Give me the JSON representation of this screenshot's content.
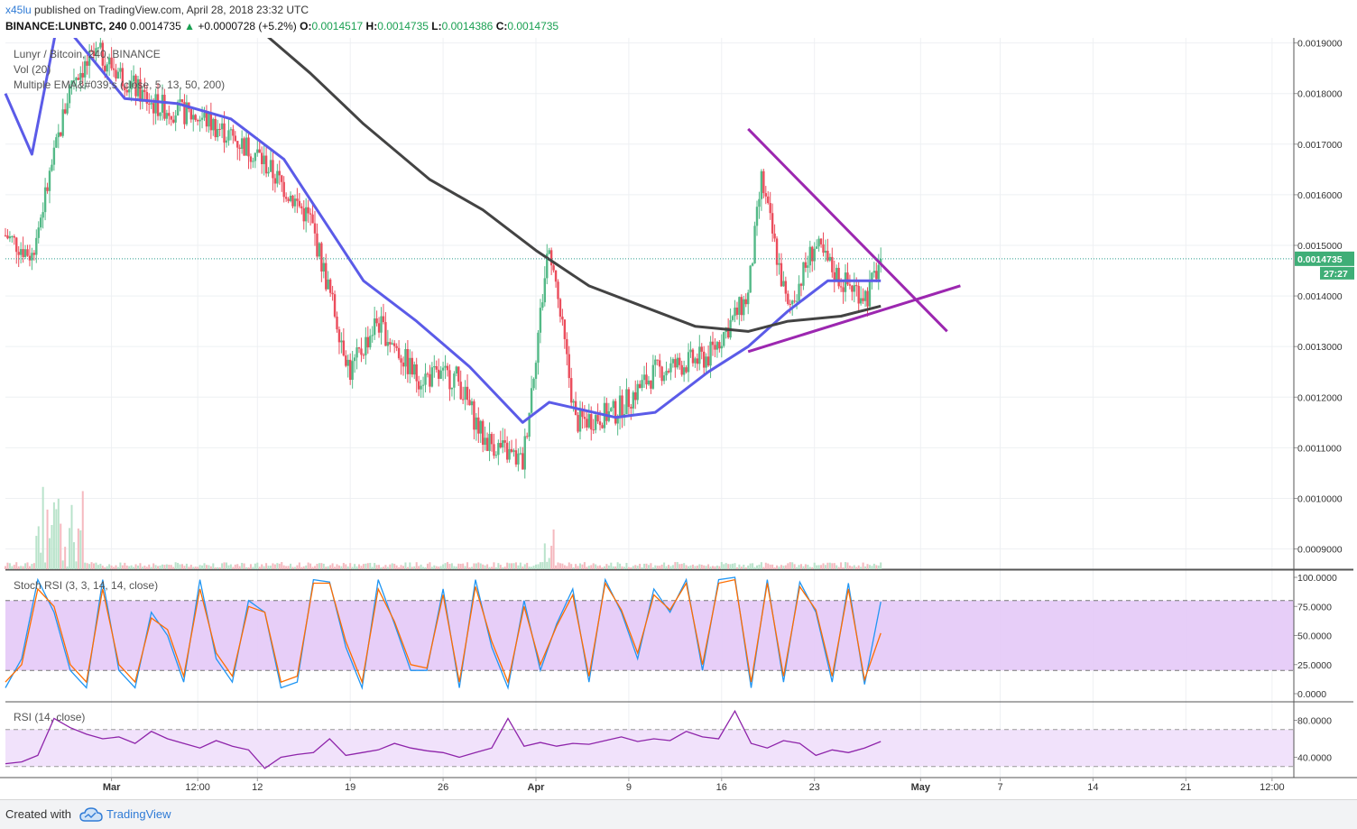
{
  "header": {
    "author": "x45lu",
    "published_text": "published on TradingView.com, April 28, 2018 23:32 UTC",
    "symbol": "BINANCE:LUNBTC, 240",
    "last": "0.0014735",
    "change_arrow": "▲",
    "change": "+0.0000728 (+5.2%)",
    "o_label": "O:",
    "o": "0.0014517",
    "h_label": "H:",
    "h": "0.0014735",
    "l_label": "L:",
    "l": "0.0014386",
    "c_label": "C:",
    "c": "0.0014735"
  },
  "legends": {
    "main": "Lunyr / Bitcoin, 240, BINANCE",
    "vol": "Vol (20)",
    "ema": "Multiple EMA&#039;s (close, 5, 13, 50, 200)",
    "stoch": "Stoch RSI (3, 3, 14, 14, close)",
    "rsi": "RSI (14, close)"
  },
  "price_badge": {
    "value": "0.0014735",
    "countdown": "27:27"
  },
  "footer": {
    "created": "Created with",
    "brand": "TradingView"
  },
  "colors": {
    "up": "#53b987",
    "down": "#eb4d5c",
    "ema50": "#5b5be8",
    "ema200": "#434343",
    "trend": "#9c27b0",
    "stoch_k": "#2196f3",
    "stoch_d": "#ff6d00",
    "rsi": "#8e24aa",
    "band_fill": "#e4c9f7"
  },
  "chart_data": [
    {
      "type": "candlestick",
      "title": "Lunyr / Bitcoin, 240, BINANCE",
      "x_tick_labels": [
        "Mar",
        "12:00",
        "12",
        "19",
        "26",
        "Apr",
        "9",
        "16",
        "23",
        "May",
        "7",
        "14",
        "21",
        "12:00"
      ],
      "y_tick_labels": [
        "0.0019000",
        "0.0018000",
        "0.0017000",
        "0.0016000",
        "0.0015000",
        "0.0014000",
        "0.0013000",
        "0.0012000",
        "0.0011000",
        "0.0010000",
        "0.0009000"
      ],
      "ylim": [
        0.00086,
        0.00191
      ],
      "last_price": 0.0014735,
      "price_path": [
        {
          "x": "Feb 21",
          "close": 0.00152
        },
        {
          "x": "Feb 23",
          "close": 0.00148
        },
        {
          "x": "Feb 26",
          "close": 0.00183
        },
        {
          "x": "Feb 28",
          "close": 0.00188
        },
        {
          "x": "Mar 4",
          "close": 0.00178
        },
        {
          "x": "Mar 8",
          "close": 0.00175
        },
        {
          "x": "Mar 12",
          "close": 0.00168
        },
        {
          "x": "Mar 16",
          "close": 0.00155
        },
        {
          "x": "Mar 19",
          "close": 0.00125
        },
        {
          "x": "Mar 21",
          "close": 0.00135
        },
        {
          "x": "Mar 24",
          "close": 0.00124
        },
        {
          "x": "Mar 27",
          "close": 0.00124
        },
        {
          "x": "Mar 29",
          "close": 0.00112
        },
        {
          "x": "Apr 1",
          "close": 0.00107
        },
        {
          "x": "Apr 3",
          "close": 0.00151
        },
        {
          "x": "Apr 5",
          "close": 0.00115
        },
        {
          "x": "Apr 8",
          "close": 0.00117
        },
        {
          "x": "Apr 11",
          "close": 0.00125
        },
        {
          "x": "Apr 15",
          "close": 0.00128
        },
        {
          "x": "Apr 18",
          "close": 0.0014
        },
        {
          "x": "Apr 19",
          "close": 0.00163
        },
        {
          "x": "Apr 21",
          "close": 0.00137
        },
        {
          "x": "Apr 23",
          "close": 0.0015
        },
        {
          "x": "Apr 25",
          "close": 0.00143
        },
        {
          "x": "Apr 27",
          "close": 0.0014
        },
        {
          "x": "Apr 28",
          "close": 0.0014735
        }
      ],
      "series": [
        {
          "name": "EMA 50",
          "values": [
            {
              "x": "Feb 21",
              "y": 0.0018
            },
            {
              "x": "Feb 23",
              "y": 0.00168
            },
            {
              "x": "Feb 25",
              "y": 0.00195
            },
            {
              "x": "Mar 2",
              "y": 0.00179
            },
            {
              "x": "Mar 6",
              "y": 0.00178
            },
            {
              "x": "Mar 10",
              "y": 0.00175
            },
            {
              "x": "Mar 14",
              "y": 0.00167
            },
            {
              "x": "Mar 17",
              "y": 0.00155
            },
            {
              "x": "Mar 20",
              "y": 0.00143
            },
            {
              "x": "Mar 24",
              "y": 0.00135
            },
            {
              "x": "Mar 28",
              "y": 0.00126
            },
            {
              "x": "Apr 1",
              "y": 0.00115
            },
            {
              "x": "Apr 3",
              "y": 0.00119
            },
            {
              "x": "Apr 8",
              "y": 0.00116
            },
            {
              "x": "Apr 11",
              "y": 0.00117
            },
            {
              "x": "Apr 15",
              "y": 0.00125
            },
            {
              "x": "Apr 18",
              "y": 0.0013
            },
            {
              "x": "Apr 21",
              "y": 0.00137
            },
            {
              "x": "Apr 24",
              "y": 0.00143
            },
            {
              "x": "Apr 28",
              "y": 0.00143
            }
          ]
        },
        {
          "name": "EMA 200",
          "values": [
            {
              "x": "Mar 12",
              "y": 0.00193
            },
            {
              "x": "Mar 16",
              "y": 0.00184
            },
            {
              "x": "Mar 20",
              "y": 0.00174
            },
            {
              "x": "Mar 25",
              "y": 0.00163
            },
            {
              "x": "Mar 29",
              "y": 0.00157
            },
            {
              "x": "Apr 2",
              "y": 0.00149
            },
            {
              "x": "Apr 6",
              "y": 0.00142
            },
            {
              "x": "Apr 10",
              "y": 0.00138
            },
            {
              "x": "Apr 14",
              "y": 0.00134
            },
            {
              "x": "Apr 18",
              "y": 0.00133
            },
            {
              "x": "Apr 21",
              "y": 0.00135
            },
            {
              "x": "Apr 25",
              "y": 0.00136
            },
            {
              "x": "Apr 28",
              "y": 0.00138
            }
          ]
        }
      ],
      "trendlines": [
        {
          "from": {
            "x": "Apr 18",
            "y": 0.00173
          },
          "to": {
            "x": "May 3",
            "y": 0.00133
          }
        },
        {
          "from": {
            "x": "Apr 18",
            "y": 0.00129
          },
          "to": {
            "x": "May 4",
            "y": 0.00142
          }
        }
      ],
      "grid": true
    },
    {
      "type": "line",
      "title": "Stoch RSI (3, 3, 14, 14, close)",
      "y_tick_labels": [
        "100.0000",
        "75.0000",
        "50.0000",
        "25.0000",
        "0.0000"
      ],
      "ylim": [
        0,
        100
      ],
      "bands": [
        20,
        80
      ],
      "series": [
        {
          "name": "K",
          "values": [
            5,
            30,
            98,
            70,
            20,
            5,
            98,
            20,
            5,
            70,
            50,
            10,
            98,
            30,
            10,
            80,
            70,
            5,
            10,
            98,
            96,
            40,
            5,
            98,
            60,
            20,
            20,
            90,
            5,
            98,
            40,
            5,
            80,
            20,
            60,
            90,
            10,
            98,
            70,
            30,
            90,
            70,
            98,
            20,
            98,
            100,
            5,
            98,
            10,
            96,
            70,
            10,
            95,
            8,
            79
          ]
        },
        {
          "name": "D",
          "values": [
            10,
            25,
            90,
            75,
            25,
            10,
            90,
            25,
            10,
            65,
            55,
            15,
            90,
            35,
            15,
            75,
            70,
            10,
            15,
            95,
            95,
            45,
            10,
            90,
            62,
            25,
            22,
            85,
            10,
            92,
            45,
            10,
            75,
            25,
            58,
            85,
            15,
            95,
            72,
            35,
            85,
            72,
            95,
            25,
            95,
            98,
            10,
            95,
            15,
            92,
            72,
            15,
            90,
            12,
            52
          ]
        }
      ],
      "grid": true
    },
    {
      "type": "line",
      "title": "RSI (14, close)",
      "y_tick_labels": [
        "80.0000",
        "40.0000"
      ],
      "ylim": [
        18,
        100
      ],
      "bands": [
        30,
        70
      ],
      "series": [
        {
          "name": "RSI",
          "values": [
            33,
            35,
            42,
            82,
            72,
            65,
            60,
            62,
            55,
            68,
            60,
            55,
            50,
            58,
            52,
            48,
            28,
            40,
            43,
            45,
            60,
            42,
            45,
            48,
            55,
            50,
            47,
            45,
            40,
            45,
            50,
            82,
            52,
            56,
            52,
            55,
            54,
            58,
            62,
            57,
            60,
            58,
            68,
            62,
            60,
            90,
            55,
            50,
            58,
            55,
            42,
            48,
            45,
            50,
            57
          ]
        }
      ]
    }
  ]
}
